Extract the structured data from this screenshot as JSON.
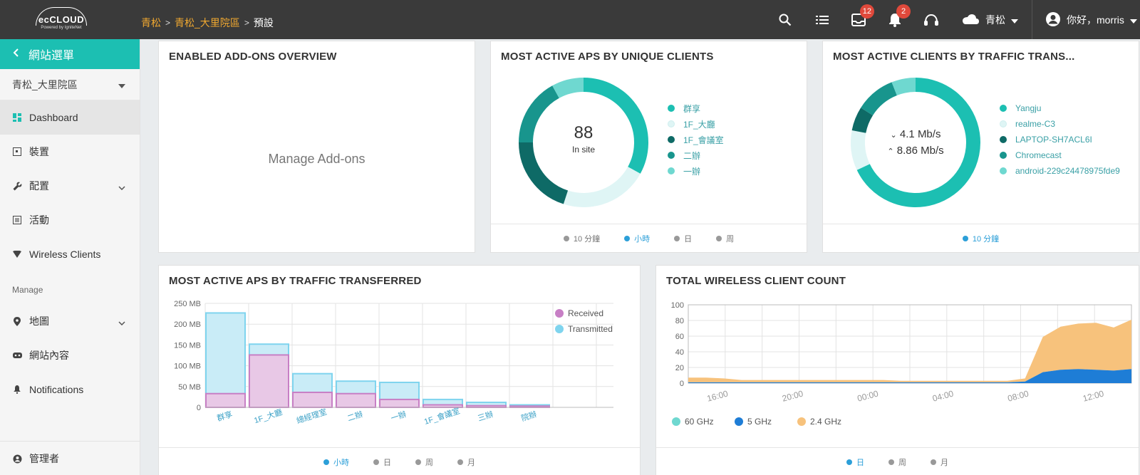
{
  "topbar": {
    "logo": {
      "brand": "ecCLOUD",
      "sub": "Powered by IgniteNet"
    },
    "breadcrumb": [
      {
        "label": "青松",
        "link": true
      },
      {
        "label": "青松_大里院區",
        "link": true
      },
      {
        "label": "預設",
        "link": false
      }
    ],
    "breadcrumb_sep": ">",
    "icons": [
      "search-icon",
      "list-icon",
      "inbox-icon",
      "bell-icon",
      "headset-icon",
      "cloud-icon",
      "user-circle-icon"
    ],
    "inbox_badge": "12",
    "bell_badge": "2",
    "site_selector": "青松",
    "user_greeting": "你好，morris"
  },
  "sidebar": {
    "header": "網站選單",
    "site_selector": "青松_大里院區",
    "items": [
      {
        "label": "Dashboard",
        "icon": "dashboard-icon",
        "active": true
      },
      {
        "label": "裝置",
        "icon": "device-icon"
      },
      {
        "label": "配置",
        "icon": "wrench-icon",
        "expandable": true
      },
      {
        "label": "活動",
        "icon": "activity-icon"
      },
      {
        "label": "Wireless Clients",
        "icon": "wifi-icon"
      }
    ],
    "section_manage": "Manage",
    "manage_items": [
      {
        "label": "地圖",
        "icon": "map-pin-icon",
        "expandable": true
      },
      {
        "label": "網站內容",
        "icon": "content-icon"
      },
      {
        "label": "Notifications",
        "icon": "bell-icon"
      }
    ],
    "bottom_item": {
      "label": "管理者",
      "icon": "admin-icon"
    }
  },
  "cards": {
    "addons": {
      "title": "ENABLED ADD-ONS OVERVIEW",
      "link": "Manage Add-ons"
    },
    "aps_unique": {
      "title": "MOST ACTIVE APS BY UNIQUE CLIENTS",
      "center_value": "88",
      "center_label": "In site",
      "legend": [
        {
          "label": "群享",
          "color": "#1cbfb2"
        },
        {
          "label": "1F_大廳",
          "color": "#dff5f5"
        },
        {
          "label": "1F_會議室",
          "color": "#0e6a66"
        },
        {
          "label": "二辦",
          "color": "#18958d"
        },
        {
          "label": "一辦",
          "color": "#6fd8d0"
        }
      ],
      "donut_values": [
        33,
        22,
        20,
        17,
        8
      ],
      "footer": [
        {
          "label": "10 分鐘",
          "selected": false
        },
        {
          "label": "小時",
          "selected": true
        },
        {
          "label": "日",
          "selected": false
        },
        {
          "label": "周",
          "selected": false
        }
      ]
    },
    "clients_traffic": {
      "title": "MOST ACTIVE CLIENTS BY TRAFFIC TRANS...",
      "down_rate": "4.1 Mb/s",
      "up_rate": "8.86 Mb/s",
      "legend": [
        {
          "label": "Yangju",
          "color": "#1cbfb2"
        },
        {
          "label": "realme-C3",
          "color": "#dff5f5"
        },
        {
          "label": "LAPTOP-SH7ACL6I",
          "color": "#0e6a66"
        },
        {
          "label": "Chromecast",
          "color": "#18958d"
        },
        {
          "label": "android-229c24478975fde9",
          "color": "#6fd8d0"
        }
      ],
      "donut_values": [
        68,
        10,
        6,
        10,
        6
      ],
      "footer": [
        {
          "label": "10 分鐘",
          "selected": true
        }
      ]
    },
    "aps_traffic": {
      "title": "MOST ACTIVE APS BY TRAFFIC TRANSFERRED",
      "footer": [
        {
          "label": "小時",
          "selected": true
        },
        {
          "label": "日",
          "selected": false
        },
        {
          "label": "周",
          "selected": false
        },
        {
          "label": "月",
          "selected": false
        }
      ]
    },
    "client_count": {
      "title": "TOTAL WIRELESS CLIENT COUNT",
      "footer": [
        {
          "label": "日",
          "selected": true
        },
        {
          "label": "周",
          "selected": false
        },
        {
          "label": "月",
          "selected": false
        }
      ]
    }
  },
  "chart_data": [
    {
      "type": "bar",
      "categories": [
        "群享",
        "1F_大廳",
        "總經理室",
        "二辦",
        "一辦",
        "1F_會議室",
        "三辦",
        "院辦"
      ],
      "series": [
        {
          "name": "Received",
          "color": "#c77fc5",
          "values": [
            33,
            126,
            36,
            33,
            19,
            6,
            4,
            3
          ]
        },
        {
          "name": "Transmitted",
          "color": "#7fd4ee",
          "values": [
            227,
            152,
            81,
            63,
            60,
            19,
            12,
            6
          ]
        }
      ],
      "yticks": [
        "0",
        "50 MB",
        "100 MB",
        "150 MB",
        "200 MB",
        "250 MB"
      ],
      "ylim": [
        0,
        250
      ],
      "legend_position": "top-right"
    },
    {
      "type": "area",
      "x_ticks": [
        "16:00",
        "20:00",
        "00:00",
        "04:00",
        "08:00",
        "12:00"
      ],
      "yticks": [
        "0",
        "20",
        "40",
        "60",
        "80",
        "100"
      ],
      "ylim": [
        0,
        100
      ],
      "series": [
        {
          "name": "60 GHz",
          "color": "#6fd8d0",
          "values": [
            0,
            0,
            0,
            0,
            0,
            0,
            0,
            0,
            0,
            0,
            0,
            0,
            0,
            0,
            0,
            0,
            0,
            0,
            0,
            0,
            0,
            0,
            0,
            0,
            0,
            0
          ]
        },
        {
          "name": "5 GHz",
          "color": "#1e7dd6",
          "values": [
            1,
            1,
            1,
            1,
            1,
            1,
            1,
            1,
            1,
            1,
            1,
            1,
            1,
            1,
            1,
            1,
            1,
            1,
            1,
            2,
            14,
            17,
            18,
            17,
            16,
            18
          ]
        },
        {
          "name": "2.4 GHz",
          "color": "#f7c27c",
          "values": [
            6,
            6,
            5,
            3,
            3,
            3,
            3,
            3,
            3,
            3,
            3,
            3,
            2,
            2,
            2,
            2,
            2,
            2,
            2,
            4,
            45,
            55,
            58,
            60,
            55,
            63
          ]
        }
      ],
      "legend_position": "bottom-left"
    }
  ]
}
